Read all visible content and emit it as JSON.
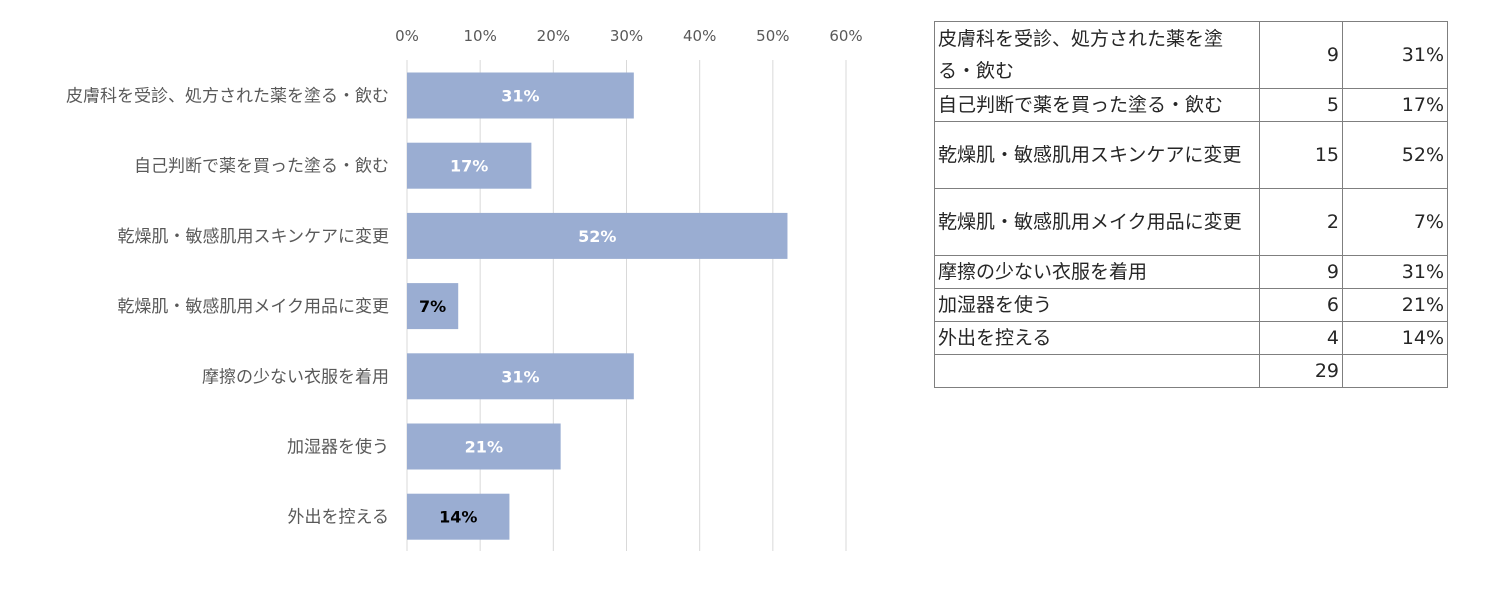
{
  "chart_data": {
    "type": "bar",
    "orientation": "horizontal",
    "categories": [
      "皮膚科を受診、処方された薬を塗る・飲む",
      "自己判断で薬を買った塗る・飲む",
      "乾燥肌・敏感肌用スキンケアに変更",
      "乾燥肌・敏感肌用メイク用品に変更",
      "摩擦の少ない衣服を着用",
      "加湿器を使う",
      "外出を控える"
    ],
    "values": [
      31,
      17,
      52,
      7,
      31,
      21,
      14
    ],
    "data_labels": [
      "31%",
      "17%",
      "52%",
      "7%",
      "31%",
      "21%",
      "14%"
    ],
    "xlim": [
      0,
      60
    ],
    "x_ticks": [
      "0%",
      "10%",
      "20%",
      "30%",
      "40%",
      "50%",
      "60%"
    ],
    "x_axis_position": "top",
    "grid": true,
    "bar_color": "#9aadd2"
  },
  "table": {
    "rows": [
      {
        "label": "皮膚科を受診、処方された薬を塗る・飲む",
        "count": "9",
        "pct": "31%"
      },
      {
        "label": "自己判断で薬を買った塗る・飲む",
        "count": "5",
        "pct": "17%"
      },
      {
        "label": "乾燥肌・敏感肌用スキンケアに変更",
        "count": "15",
        "pct": "52%"
      },
      {
        "label": "乾燥肌・敏感肌用メイク用品に変更",
        "count": "2",
        "pct": "7%"
      },
      {
        "label": "摩擦の少ない衣服を着用",
        "count": "9",
        "pct": "31%"
      },
      {
        "label": "加湿器を使う",
        "count": "6",
        "pct": "21%"
      },
      {
        "label": "外出を控える",
        "count": "4",
        "pct": "14%"
      }
    ],
    "total": {
      "label": "",
      "count": "29",
      "pct": ""
    }
  }
}
